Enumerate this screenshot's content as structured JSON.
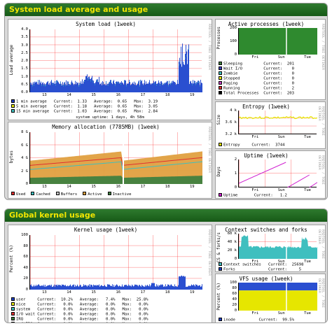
{
  "sections": {
    "system": "System load average and usage",
    "kernel": "Global kernel usage"
  },
  "rrd_watermark": "RRDTOOL / TOBI OETIKER",
  "load": {
    "title": "System load  (1week)",
    "ylabel": "Load average",
    "xticks": [
      "13",
      "14",
      "15",
      "16",
      "17",
      "18",
      "19"
    ],
    "yticks": [
      "4.0",
      "3.5",
      "3.0",
      "2.5",
      "2.0",
      "1.5",
      "1.0",
      "0.5",
      "0.0"
    ],
    "legend": [
      {
        "color": "#1f3fbf",
        "text": "1 min average   Current:  1.33   Average:  0.65   Max:  3.19"
      },
      {
        "color": "#e6e600",
        "text": "5 min average   Current:  1.18   Average:  0.65   Max:  3.05"
      },
      {
        "color": "#3fbfbf",
        "text": "15 min average  Current:  1.03   Average:  0.65   Max:  2.84"
      }
    ],
    "uptime": "system uptime: 1 days, 4h 58m"
  },
  "memory": {
    "title": "Memory allocation  (7785MB)  (1week)",
    "ylabel": "bytes",
    "xticks": [
      "13",
      "14",
      "15",
      "16",
      "17",
      "18",
      "19"
    ],
    "yticks": [
      "8 G",
      "6 G",
      "4 G",
      "2 G",
      "0"
    ],
    "legend": [
      {
        "color": "#e03030",
        "label": "Used"
      },
      {
        "color": "#3fbfbf",
        "label": "Cached"
      },
      {
        "color": "#c0c0c0",
        "label": "Buffers"
      },
      {
        "color": "#e0a040",
        "label": "Active"
      },
      {
        "color": "#3f7f3f",
        "label": "Inactive"
      }
    ]
  },
  "processes": {
    "title": "Active processes  (1week)",
    "ylabel": "Processes",
    "yticks": [
      "200",
      "100",
      "0"
    ],
    "xticks": [
      "Fri",
      "Sun",
      "Tue"
    ],
    "legend": [
      {
        "color": "#3f7f3f",
        "text": "Sleeping         Current:  201"
      },
      {
        "color": "#3f3fbf",
        "text": "Wait I/O         Current:    0"
      },
      {
        "color": "#3fbfbf",
        "text": "Zombie           Current:    0"
      },
      {
        "color": "#e6e600",
        "text": "Stopped          Current:    0"
      },
      {
        "color": "#bf3fbf",
        "text": "Paging           Current:    0"
      },
      {
        "color": "#e03030",
        "text": "Running          Current:    2"
      },
      {
        "color": "#000000",
        "text": "Total Processes  Current:  203"
      }
    ]
  },
  "entropy": {
    "title": "Entropy  (1week)",
    "ylabel": "Size",
    "yticks": [
      "4 k",
      "3.6 k",
      "3.2 k"
    ],
    "xticks": [
      "Fri",
      "Sun",
      "Tue"
    ],
    "legend": [
      {
        "color": "#e6e600",
        "text": "Entropy     Current:  3744"
      }
    ]
  },
  "uptime_graph": {
    "title": "Uptime  (1week)",
    "ylabel": "Days",
    "yticks": [
      "2",
      "1",
      "0"
    ],
    "xticks": [
      "Fri",
      "Sun",
      "Tue"
    ],
    "legend": [
      {
        "color": "#d020d0",
        "text": "Uptime       Current:   1.2"
      }
    ]
  },
  "kernel": {
    "title": "Kernel usage  (1week)",
    "ylabel": "Percent (%)",
    "xticks": [
      "13",
      "14",
      "15",
      "16",
      "17",
      "18",
      "19"
    ],
    "yticks": [
      "100",
      "80",
      "60",
      "40",
      "20",
      "0"
    ],
    "legend": [
      {
        "color": "#1f3fbf",
        "text": "user     Current:  10.2%   Average:   7.4%   Max:  25.8%"
      },
      {
        "color": "#e6e600",
        "text": "nice     Current:   0.0%   Average:   0.0%   Max:   0.0%"
      },
      {
        "color": "#3fbfbf",
        "text": "system   Current:   0.0%   Average:   0.0%   Max:   0.0%"
      },
      {
        "color": "#e03030",
        "text": "I/O wait Current:   0.0%   Average:   0.0%   Max:   0.0%"
      },
      {
        "color": "#3f7f3f",
        "text": "IRQ      Current:   0.0%   Average:   0.0%   Max:   0.0%"
      },
      {
        "color": "#bf3fbf",
        "text": "softIRQ  Current:   0.0%   Average:   0.0%   Max:   0.0%"
      }
    ]
  },
  "context": {
    "title": "Context switches and forks  (1week)",
    "ylabel": "CS & forks/s",
    "yticks": [
      "60 k",
      "40 k",
      "20 k",
      "0"
    ],
    "xticks": [
      "Fri",
      "Sun",
      "Tue"
    ],
    "legend": [
      {
        "color": "#3fbfbf",
        "text": "Context switches   Current:  25698"
      },
      {
        "color": "#1f3fbf",
        "text": "Forks              Current:     5"
      }
    ]
  },
  "vfs": {
    "title": "VFS usage  (1week)",
    "ylabel": "Percent (%)",
    "yticks": [
      "100",
      "80",
      "60",
      "40",
      "20",
      "0"
    ],
    "xticks": [
      "Fri",
      "Sun",
      "Tue"
    ],
    "legend": [
      {
        "color": "#1f3fbf",
        "text": "inode          Current:  99.5%"
      },
      {
        "color": "#e6e600",
        "text": "dentry         Current:   0.1%"
      }
    ]
  }
}
